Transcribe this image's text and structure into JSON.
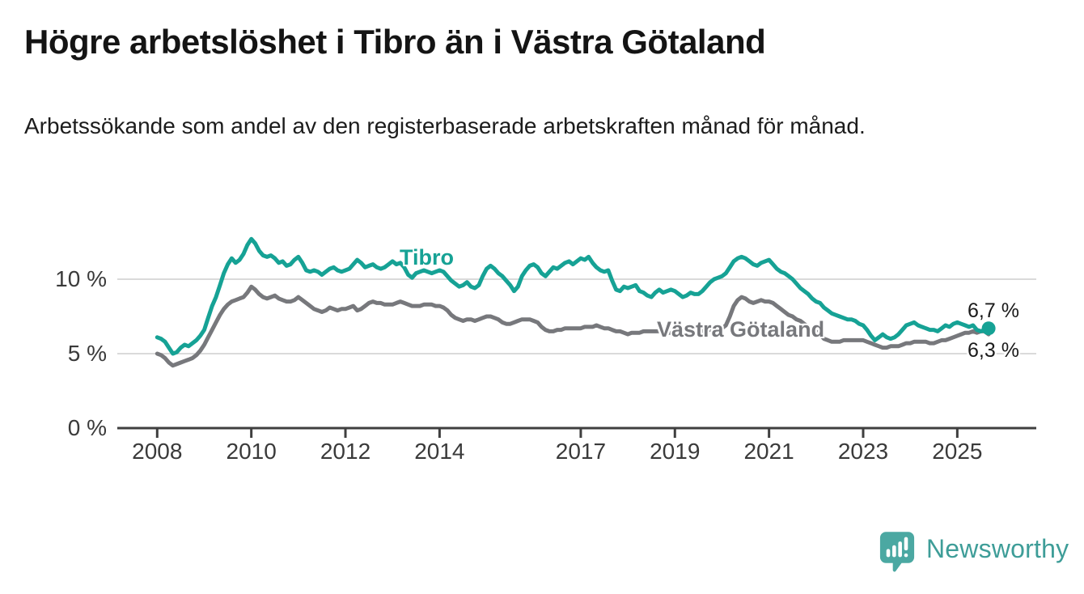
{
  "header": {
    "title": "Högre arbetslöshet i Tibro än i Västra Götaland",
    "subtitle": "Arbetssökande som andel av den registerbaserade arbetskraften månad för månad."
  },
  "chart_data": {
    "type": "line",
    "title": "Högre arbetslöshet i Tibro än i Västra Götaland",
    "subtitle": "Arbetssökande som andel av den registerbaserade arbetskraften månad för månad.",
    "x_axis": {
      "start_year": 2008,
      "step_months": 1,
      "tick_labels": [
        "2008",
        "2010",
        "2012",
        "2014",
        "2017",
        "2019",
        "2021",
        "2023",
        "2025"
      ],
      "tick_values": [
        2008,
        2010,
        2012,
        2014,
        2017,
        2019,
        2021,
        2023,
        2025
      ]
    },
    "y_axis": {
      "tick_labels": [
        "0 %",
        "5 %",
        "10 %"
      ],
      "tick_values": [
        0,
        5,
        10
      ],
      "range": [
        0,
        13.4
      ],
      "grid": "horizontal"
    },
    "legend_position": "inline-labels",
    "series": [
      {
        "name": "Tibro",
        "color": "#16A295",
        "end_annotation": "6,7 %",
        "end_value": 6.7,
        "values": [
          6.1,
          6.0,
          5.8,
          5.4,
          5.0,
          5.1,
          5.4,
          5.6,
          5.5,
          5.7,
          5.9,
          6.2,
          6.6,
          7.4,
          8.2,
          8.8,
          9.6,
          10.4,
          11.0,
          11.4,
          11.1,
          11.3,
          11.7,
          12.3,
          12.7,
          12.4,
          11.9,
          11.6,
          11.5,
          11.6,
          11.4,
          11.1,
          11.2,
          10.9,
          11.0,
          11.3,
          11.5,
          11.1,
          10.6,
          10.5,
          10.6,
          10.5,
          10.3,
          10.5,
          10.7,
          10.8,
          10.6,
          10.5,
          10.6,
          10.7,
          11.0,
          11.3,
          11.1,
          10.8,
          10.9,
          11.0,
          10.8,
          10.7,
          10.8,
          11.0,
          11.2,
          11.0,
          11.1,
          10.8,
          10.3,
          10.1,
          10.4,
          10.5,
          10.6,
          10.5,
          10.4,
          10.5,
          10.6,
          10.5,
          10.2,
          9.9,
          9.7,
          9.5,
          9.6,
          9.8,
          9.5,
          9.4,
          9.6,
          10.2,
          10.7,
          10.9,
          10.7,
          10.4,
          10.2,
          9.9,
          9.6,
          9.2,
          9.5,
          10.2,
          10.6,
          10.9,
          11.0,
          10.8,
          10.4,
          10.2,
          10.5,
          10.8,
          10.7,
          10.9,
          11.1,
          11.2,
          11.0,
          11.2,
          11.4,
          11.3,
          11.5,
          11.1,
          10.8,
          10.6,
          10.5,
          10.6,
          9.9,
          9.3,
          9.2,
          9.5,
          9.4,
          9.5,
          9.6,
          9.2,
          9.1,
          8.9,
          8.8,
          9.1,
          9.3,
          9.1,
          9.2,
          9.3,
          9.2,
          9.0,
          8.8,
          8.9,
          9.1,
          9.0,
          9.0,
          9.2,
          9.5,
          9.8,
          10.0,
          10.1,
          10.2,
          10.4,
          10.8,
          11.2,
          11.4,
          11.5,
          11.4,
          11.2,
          11.0,
          10.9,
          11.1,
          11.2,
          11.3,
          11.0,
          10.7,
          10.5,
          10.4,
          10.2,
          10.0,
          9.7,
          9.4,
          9.2,
          9.0,
          8.7,
          8.5,
          8.4,
          8.1,
          7.9,
          7.7,
          7.6,
          7.5,
          7.4,
          7.3,
          7.3,
          7.2,
          7.0,
          6.9,
          6.6,
          6.2,
          5.9,
          6.1,
          6.3,
          6.1,
          6.0,
          6.1,
          6.3,
          6.6,
          6.9,
          7.0,
          7.1,
          6.9,
          6.8,
          6.7,
          6.6,
          6.6,
          6.5,
          6.7,
          6.9,
          6.8,
          7.0,
          7.1,
          7.0,
          6.9,
          6.8,
          6.9,
          6.6,
          6.5,
          6.6,
          6.7
        ]
      },
      {
        "name": "Västra Götaland",
        "color": "#77787C",
        "end_annotation": "6,3 %",
        "end_value": 6.3,
        "values": [
          5.0,
          4.9,
          4.7,
          4.4,
          4.2,
          4.3,
          4.4,
          4.5,
          4.6,
          4.7,
          4.9,
          5.2,
          5.6,
          6.1,
          6.6,
          7.1,
          7.6,
          8.0,
          8.3,
          8.5,
          8.6,
          8.7,
          8.8,
          9.1,
          9.5,
          9.3,
          9.0,
          8.8,
          8.7,
          8.8,
          8.9,
          8.7,
          8.6,
          8.5,
          8.5,
          8.6,
          8.8,
          8.6,
          8.4,
          8.2,
          8.0,
          7.9,
          7.8,
          7.9,
          8.1,
          8.0,
          7.9,
          8.0,
          8.0,
          8.1,
          8.2,
          7.9,
          8.0,
          8.2,
          8.4,
          8.5,
          8.4,
          8.4,
          8.3,
          8.3,
          8.3,
          8.4,
          8.5,
          8.4,
          8.3,
          8.2,
          8.2,
          8.2,
          8.3,
          8.3,
          8.3,
          8.2,
          8.2,
          8.1,
          7.9,
          7.6,
          7.4,
          7.3,
          7.2,
          7.3,
          7.3,
          7.2,
          7.3,
          7.4,
          7.5,
          7.5,
          7.4,
          7.3,
          7.1,
          7.0,
          7.0,
          7.1,
          7.2,
          7.3,
          7.3,
          7.3,
          7.2,
          7.1,
          6.8,
          6.6,
          6.5,
          6.5,
          6.6,
          6.6,
          6.7,
          6.7,
          6.7,
          6.7,
          6.7,
          6.8,
          6.8,
          6.8,
          6.9,
          6.8,
          6.7,
          6.7,
          6.6,
          6.5,
          6.5,
          6.4,
          6.3,
          6.4,
          6.4,
          6.4,
          6.5,
          6.5,
          6.5,
          6.5,
          6.5,
          6.4,
          6.4,
          6.4,
          6.4,
          6.4,
          6.4,
          6.4,
          6.5,
          6.5,
          6.5,
          6.5,
          6.6,
          6.6,
          6.6,
          6.6,
          6.7,
          6.9,
          7.5,
          8.2,
          8.6,
          8.8,
          8.7,
          8.5,
          8.4,
          8.5,
          8.6,
          8.5,
          8.5,
          8.4,
          8.2,
          8.0,
          7.8,
          7.6,
          7.5,
          7.3,
          7.2,
          7.0,
          6.8,
          6.6,
          6.5,
          6.3,
          6.0,
          5.9,
          5.8,
          5.8,
          5.8,
          5.9,
          5.9,
          5.9,
          5.9,
          5.9,
          5.9,
          5.8,
          5.7,
          5.6,
          5.5,
          5.4,
          5.4,
          5.5,
          5.5,
          5.5,
          5.6,
          5.7,
          5.7,
          5.8,
          5.8,
          5.8,
          5.8,
          5.7,
          5.7,
          5.8,
          5.9,
          5.9,
          6.0,
          6.1,
          6.2,
          6.3,
          6.4,
          6.4,
          6.5,
          6.4,
          6.5,
          6.5,
          6.3
        ]
      }
    ]
  },
  "annotations": {
    "tibro_label": "Tibro",
    "vg_label": "Västra Götaland",
    "end_value_top": "6,7 %",
    "end_value_bottom": "6,3 %"
  },
  "footer": {
    "brand": "Newsworthy",
    "brand_color": "#3E9D98",
    "logo_icon": "bar-chart-speech-bubble"
  },
  "colors": {
    "tibro_line": "#16A295",
    "vg_line": "#77787C",
    "gridline": "#DADADA",
    "axis": "#3F3F3F",
    "text": "#1C1C1C",
    "logo": "#4BA8A2"
  }
}
